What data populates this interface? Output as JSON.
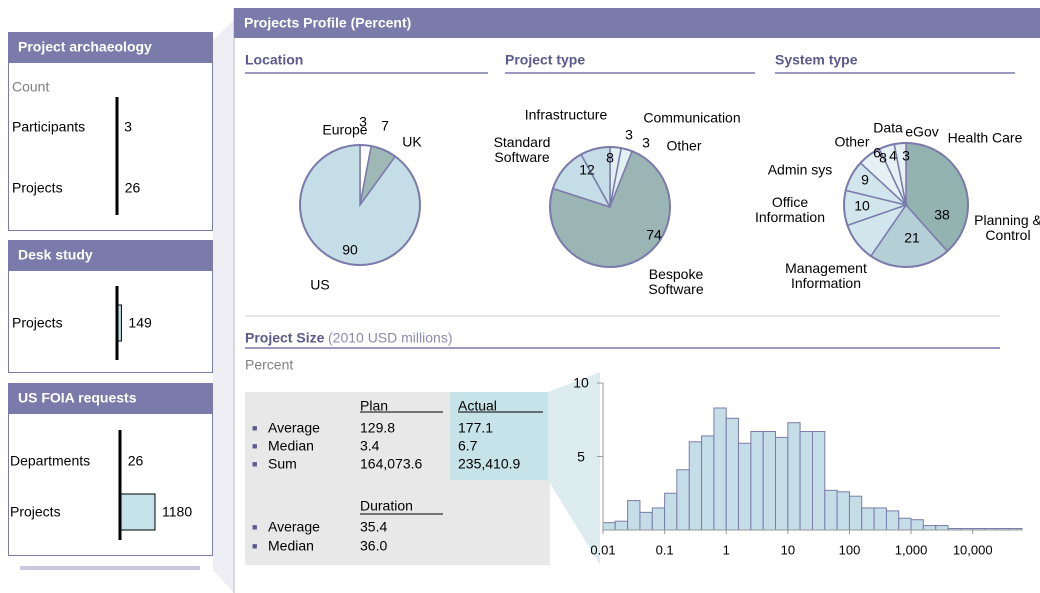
{
  "sidebar": [
    {
      "title": "Project archaeology",
      "subtitle": "Count",
      "rows": [
        {
          "label": "Participants",
          "value": 3
        },
        {
          "label": "Projects",
          "value": 26
        }
      ]
    },
    {
      "title": "Desk study",
      "rows": [
        {
          "label": "Projects",
          "value": 149
        }
      ]
    },
    {
      "title": "US FOIA requests",
      "rows": [
        {
          "label": "Departments",
          "value": 26
        },
        {
          "label": "Projects",
          "value": 1180
        }
      ]
    }
  ],
  "header": {
    "title": "Projects Profile (Percent)"
  },
  "chart_data": [
    {
      "type": "pie",
      "title": "Location",
      "categories": [
        "Europe",
        "UK",
        "US"
      ],
      "values": [
        3,
        7,
        90
      ],
      "colors": [
        "#ffffff",
        "#9db8b5",
        "#c5dde6"
      ]
    },
    {
      "type": "pie",
      "title": "Project type",
      "categories": [
        "Communication",
        "Other",
        "Bespoke Software",
        "Standard Software",
        "Infrastructure"
      ],
      "values": [
        3,
        3,
        74,
        12,
        8
      ],
      "colors": [
        "#e2f0f3",
        "#e2f0f3",
        "#9ab5b4",
        "#c5dde6",
        "#c5dde6"
      ]
    },
    {
      "type": "pie",
      "title": "System type",
      "categories": [
        "Planning & Control",
        "Management Information",
        "Office Information",
        "Admin sys",
        "Other",
        "Data",
        "eGov",
        "Health Care"
      ],
      "values": [
        38,
        21,
        10,
        9,
        8,
        6,
        4,
        3
      ],
      "colors": [
        "#93b3b1",
        "#b5cfd6",
        "#d0e6ec",
        "#d0e6ec",
        "#d0e6ec",
        "#e5f1f4",
        "#e5f1f4",
        "#e5f1f4"
      ]
    },
    {
      "type": "histogram",
      "title": "Project Size",
      "subtitle": "(2010 USD millions)",
      "y_label": "Percent",
      "log_x": true,
      "color": "#c5dde6",
      "bins": [
        0.01,
        0.0158,
        0.0251,
        0.0398,
        0.0631,
        0.1,
        0.158,
        0.251,
        0.398,
        0.631,
        1,
        1.58,
        2.51,
        3.98,
        6.31,
        10,
        15.8,
        25.1,
        39.8,
        63.1,
        100,
        158,
        251,
        398,
        631,
        1000,
        1580,
        2510,
        3980,
        6310,
        10000,
        15800,
        25100,
        39800,
        63100
      ],
      "values": [
        0.5,
        0.6,
        2.0,
        1.2,
        1.5,
        2.5,
        4.1,
        6.0,
        6.4,
        8.3,
        7.6,
        5.9,
        6.7,
        6.7,
        6.3,
        7.3,
        6.7,
        6.7,
        2.7,
        2.6,
        2.3,
        1.5,
        1.5,
        1.3,
        0.8,
        0.7,
        0.3,
        0.3,
        0.1,
        0.1,
        0.1,
        0.1,
        0.1,
        0.1
      ],
      "xlim": [
        0.01,
        63100
      ],
      "ylim": [
        0,
        10
      ],
      "xticks": [
        0.01,
        0.1,
        1,
        10,
        100,
        {
          "value": 1000,
          "label": "1,000"
        },
        {
          "value": 10000,
          "label": "10,000"
        }
      ],
      "yticks": [
        5,
        10
      ]
    }
  ],
  "stats": {
    "columns": [
      "Plan",
      "Actual"
    ],
    "rows": [
      {
        "label": "Average",
        "plan": "129.8",
        "actual": "177.1"
      },
      {
        "label": "Median",
        "plan": "3.4",
        "actual": "6.7"
      },
      {
        "label": "Sum",
        "plan": "164,073.6",
        "actual": "235,410.9"
      }
    ],
    "duration": {
      "header": "Duration",
      "rows": [
        {
          "label": "Average",
          "value": "35.4"
        },
        {
          "label": "Median",
          "value": "36.0"
        }
      ]
    }
  }
}
